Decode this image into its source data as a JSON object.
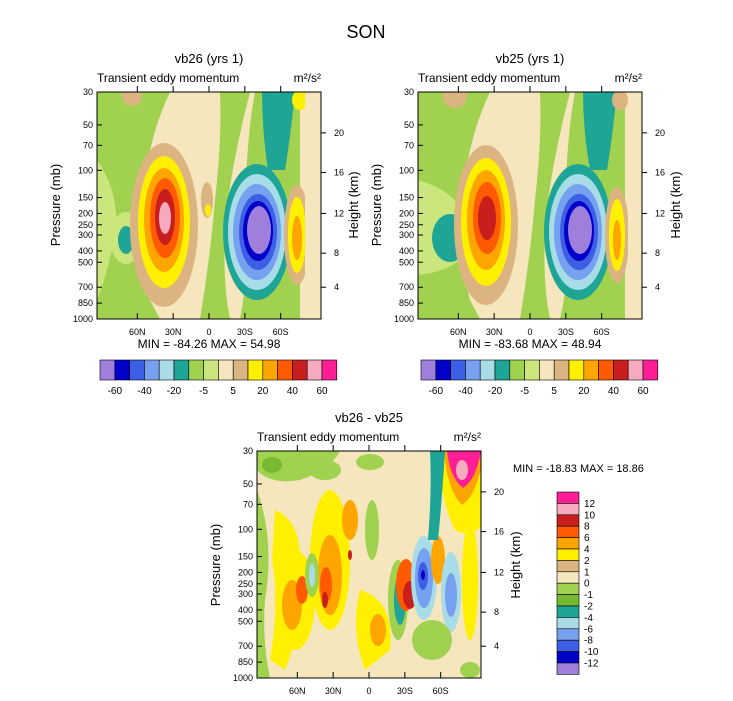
{
  "title": "SON",
  "colors": {
    "levels_main": [
      "#9e7fdc",
      "#0000c8",
      "#3c5fe6",
      "#78a0f0",
      "#a8dce6",
      "#1ea596",
      "#a0d250",
      "#cbe67d",
      "#f5e6be",
      "#dcb482",
      "#fff000",
      "#ffa500",
      "#ff5a00",
      "#c81e1e",
      "#f5aabe",
      "#ff1e96"
    ],
    "levels_diff": [
      "#9e7fdc",
      "#0000c8",
      "#3c5fe6",
      "#78a0f0",
      "#a8dce6",
      "#1ea596",
      "#78b932",
      "#a0d250",
      "#f5e6be",
      "#dcb482",
      "#fff000",
      "#ffa500",
      "#ff5a00",
      "#c81e1e",
      "#f5aabe",
      "#ff1e96"
    ]
  },
  "chart_data": [
    {
      "type": "heatmap",
      "title": "vb26 (yrs 1)",
      "left_label": "Transient eddy momentum",
      "right_label": "m²/s²",
      "xlabel": "",
      "ylabel": "Pressure (mb)",
      "ylabel_right": "Height (km)",
      "xticks": [
        "60N",
        "30N",
        "0",
        "30S",
        "60S"
      ],
      "yticks": [
        "30",
        "50",
        "70",
        "100",
        "150",
        "200",
        "250",
        "300",
        "400",
        "500",
        "700",
        "850",
        "1000"
      ],
      "yticks_right": [
        "20",
        "16",
        "12",
        "8",
        "4"
      ],
      "stats": "MIN = -84.26   MAX = 54.98",
      "colorbar_labels": [
        "-60",
        "-40",
        "-20",
        "-5",
        "5",
        "20",
        "40",
        "60"
      ],
      "min": -84.26,
      "max": 54.98
    },
    {
      "type": "heatmap",
      "title": "vb25 (yrs 1)",
      "left_label": "Transient eddy momentum",
      "right_label": "m²/s²",
      "xlabel": "",
      "ylabel": "Pressure (mb)",
      "ylabel_right": "Height (km)",
      "xticks": [
        "60N",
        "30N",
        "0",
        "30S",
        "60S"
      ],
      "yticks": [
        "30",
        "50",
        "70",
        "100",
        "150",
        "200",
        "250",
        "300",
        "400",
        "500",
        "700",
        "850",
        "1000"
      ],
      "yticks_right": [
        "20",
        "16",
        "12",
        "8",
        "4"
      ],
      "stats": "MIN = -83.68   MAX = 48.94",
      "colorbar_labels": [
        "-60",
        "-40",
        "-20",
        "-5",
        "5",
        "20",
        "40",
        "60"
      ],
      "min": -83.68,
      "max": 48.94
    },
    {
      "type": "heatmap",
      "title": "vb26 - vb25",
      "left_label": "Transient eddy momentum",
      "right_label": "m²/s²",
      "xlabel": "",
      "ylabel": "Pressure (mb)",
      "ylabel_right": "Height (km)",
      "xticks": [
        "60N",
        "30N",
        "0",
        "30S",
        "60S"
      ],
      "yticks": [
        "30",
        "50",
        "70",
        "100",
        "150",
        "200",
        "250",
        "300",
        "400",
        "500",
        "700",
        "850",
        "1000"
      ],
      "yticks_right": [
        "20",
        "16",
        "12",
        "8",
        "4"
      ],
      "stats": "MIN = -18.83   MAX =  18.86",
      "colorbar_labels": [
        "12",
        "10",
        "8",
        "6",
        "4",
        "2",
        "1",
        "0",
        "-1",
        "-2",
        "-4",
        "-6",
        "-8",
        "-10",
        "-12"
      ],
      "min": -18.83,
      "max": 18.86
    }
  ]
}
